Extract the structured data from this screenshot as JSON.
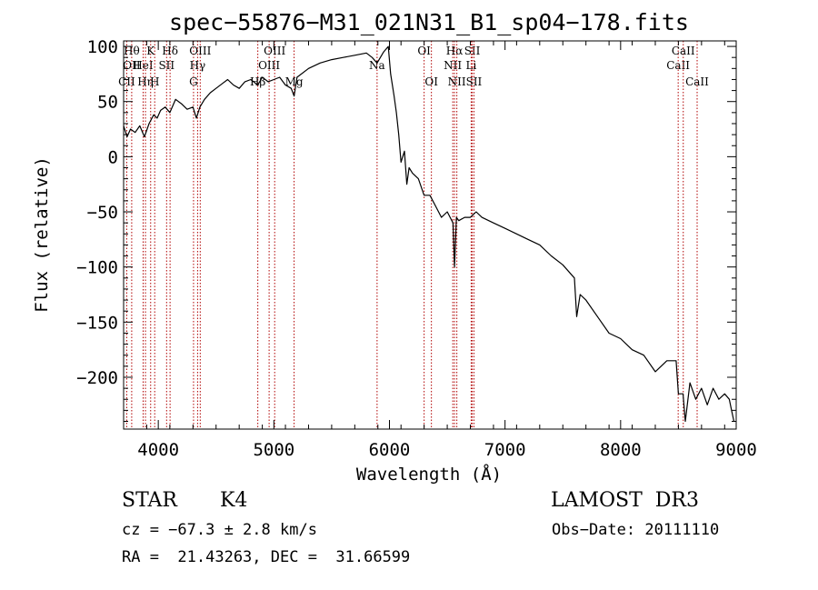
{
  "chart_data": {
    "type": "line",
    "title": "spec−55876−M31_021N31_B1_sp04−178.fits",
    "xlabel": "Wavelength (Å)",
    "ylabel": "Flux (relative)",
    "xlim": [
      3700,
      9000
    ],
    "ylim": [
      -247,
      105
    ],
    "xticks": [
      4000,
      5000,
      6000,
      7000,
      8000,
      9000
    ],
    "yticks": [
      100,
      50,
      0,
      -50,
      -100,
      -150,
      -200
    ],
    "xtick_labels": [
      "4000",
      "5000",
      "6000",
      "7000",
      "8000",
      "9000"
    ],
    "ytick_labels": [
      "100",
      "50",
      "0",
      "−50",
      "−100",
      "−150",
      "−200"
    ],
    "line_color": "#000000",
    "marker_color": "#b00000",
    "series": [
      {
        "x": [
          3700,
          3730,
          3760,
          3800,
          3840,
          3880,
          3920,
          3960,
          3990,
          4020,
          4060,
          4100,
          4150,
          4200,
          4250,
          4300,
          4330,
          4360,
          4400,
          4450,
          4500,
          4550,
          4600,
          4650,
          4700,
          4750,
          4800,
          4861,
          4900,
          4950,
          5000,
          5050,
          5100,
          5150,
          5175,
          5200,
          5300,
          5400,
          5500,
          5600,
          5700,
          5800,
          5850,
          5893,
          5950,
          5990,
          6010,
          6040,
          6060,
          6080,
          6100,
          6130,
          6150,
          6170,
          6200,
          6250,
          6300,
          6350,
          6400,
          6450,
          6500,
          6550,
          6563,
          6580,
          6600,
          6650,
          6700,
          6750,
          6800,
          6900,
          7000,
          7100,
          7200,
          7300,
          7400,
          7500,
          7600,
          7620,
          7650,
          7700,
          7800,
          7900,
          8000,
          8100,
          8200,
          8300,
          8400,
          8480,
          8500,
          8540,
          8560,
          8600,
          8650,
          8700,
          8750,
          8800,
          8850,
          8900,
          8940,
          8960,
          8980
        ],
        "y": [
          28,
          18,
          25,
          22,
          28,
          18,
          30,
          38,
          35,
          42,
          45,
          40,
          52,
          48,
          43,
          45,
          35,
          45,
          52,
          58,
          62,
          66,
          70,
          65,
          62,
          68,
          70,
          65,
          72,
          68,
          70,
          72,
          65,
          62,
          55,
          72,
          80,
          85,
          88,
          90,
          92,
          94,
          90,
          85,
          95,
          100,
          75,
          55,
          40,
          20,
          -5,
          5,
          -25,
          -10,
          -15,
          -20,
          -35,
          -35,
          -45,
          -55,
          -50,
          -60,
          -100,
          -55,
          -58,
          -55,
          -55,
          -50,
          -55,
          -60,
          -65,
          -70,
          -75,
          -80,
          -90,
          -98,
          -110,
          -145,
          -125,
          -130,
          -145,
          -160,
          -165,
          -175,
          -180,
          -195,
          -185,
          -185,
          -215,
          -215,
          -240,
          -205,
          -220,
          -210,
          -225,
          -210,
          -220,
          -215,
          -220,
          -230,
          -240
        ]
      }
    ],
    "line_markers": [
      {
        "wl": 3727,
        "labels": [
          {
            "text": "CII",
            "row": 3
          }
        ]
      },
      {
        "wl": 3770,
        "labels": [
          {
            "text": "Hθ",
            "row": 1
          },
          {
            "text": "OII",
            "row": 2
          }
        ]
      },
      {
        "wl": 3869,
        "labels": [
          {
            "text": "HeI",
            "row": 2
          }
        ]
      },
      {
        "wl": 3889,
        "labels": [
          {
            "text": "Hη",
            "row": 3
          }
        ]
      },
      {
        "wl": 3934,
        "labels": [
          {
            "text": "K",
            "row": 1
          }
        ]
      },
      {
        "wl": 3969,
        "labels": [
          {
            "text": "H",
            "row": 3
          }
        ]
      },
      {
        "wl": 4072,
        "labels": [
          {
            "text": "SII",
            "row": 2
          }
        ]
      },
      {
        "wl": 4102,
        "labels": [
          {
            "text": "Hδ",
            "row": 1
          }
        ]
      },
      {
        "wl": 4305,
        "labels": [
          {
            "text": "G",
            "row": 3
          }
        ]
      },
      {
        "wl": 4340,
        "labels": [
          {
            "text": "Hγ",
            "row": 2
          }
        ]
      },
      {
        "wl": 4363,
        "labels": [
          {
            "text": "OIII",
            "row": 1
          }
        ]
      },
      {
        "wl": 4861,
        "labels": [
          {
            "text": "Hβ",
            "row": 3
          }
        ]
      },
      {
        "wl": 4959,
        "labels": [
          {
            "text": "OIII",
            "row": 2
          }
        ]
      },
      {
        "wl": 5007,
        "labels": [
          {
            "text": "OIII",
            "row": 1
          }
        ]
      },
      {
        "wl": 5175,
        "labels": [
          {
            "text": "Mg",
            "row": 3
          }
        ]
      },
      {
        "wl": 5893,
        "labels": [
          {
            "text": "Na",
            "row": 2
          }
        ]
      },
      {
        "wl": 6300,
        "labels": [
          {
            "text": "OI",
            "row": 1
          }
        ]
      },
      {
        "wl": 6363,
        "labels": [
          {
            "text": "OI",
            "row": 3
          }
        ]
      },
      {
        "wl": 6548,
        "labels": [
          {
            "text": "NII",
            "row": 2
          }
        ]
      },
      {
        "wl": 6563,
        "labels": [
          {
            "text": "Hα",
            "row": 1
          }
        ]
      },
      {
        "wl": 6583,
        "labels": [
          {
            "text": "NII",
            "row": 3
          }
        ]
      },
      {
        "wl": 6707,
        "labels": [
          {
            "text": "Li",
            "row": 2
          }
        ]
      },
      {
        "wl": 6716,
        "labels": [
          {
            "text": "SII",
            "row": 1
          }
        ]
      },
      {
        "wl": 6731,
        "labels": [
          {
            "text": "SII",
            "row": 3
          }
        ]
      },
      {
        "wl": 8498,
        "labels": [
          {
            "text": "CaII",
            "row": 2
          }
        ]
      },
      {
        "wl": 8542,
        "labels": [
          {
            "text": "CaII",
            "row": 1
          }
        ]
      },
      {
        "wl": 8662,
        "labels": [
          {
            "text": "CaII",
            "row": 3
          }
        ]
      }
    ]
  },
  "info": {
    "object_class": "STAR",
    "subclass": "K4",
    "survey": "LAMOST  DR3",
    "cz": "cz = −67.3 ± 2.8 km/s",
    "obs_date": "Obs−Date: 20111110",
    "coords": "RA =  21.43263, DEC =  31.66599"
  }
}
